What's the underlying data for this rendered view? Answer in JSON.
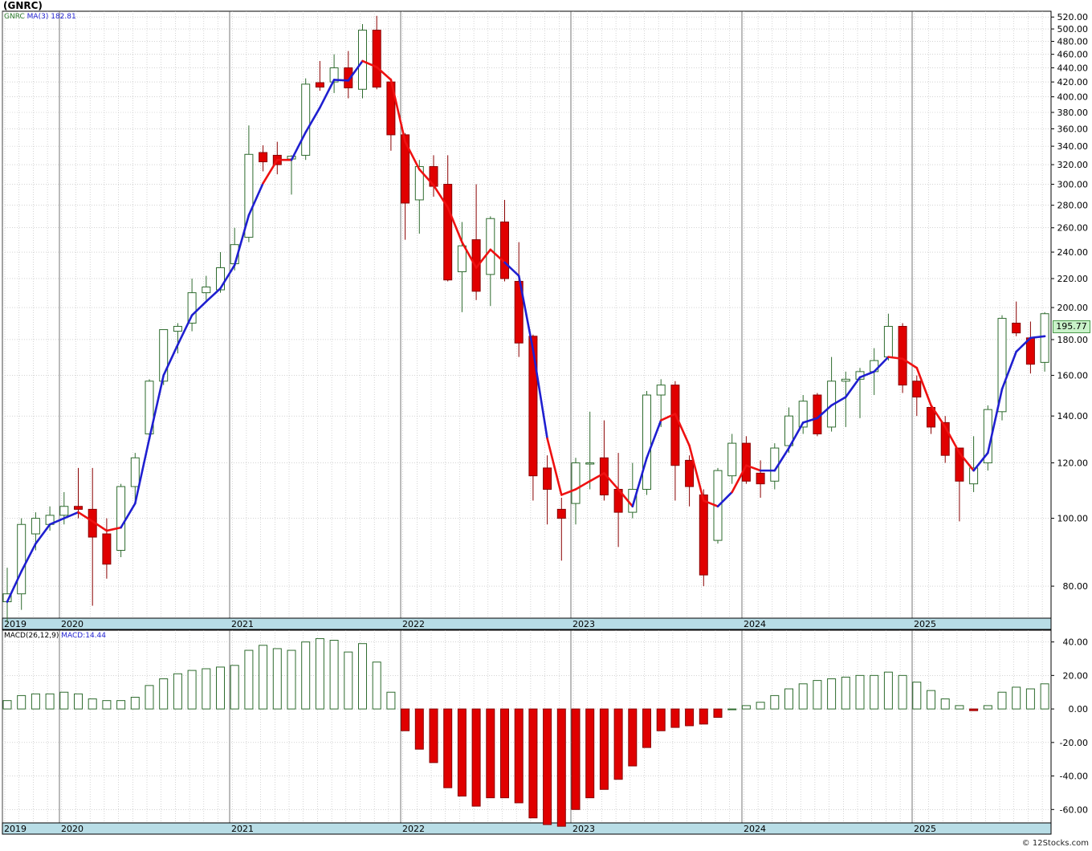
{
  "header": {
    "title": "(GNRC)"
  },
  "legend": {
    "symbol": "GNRC",
    "ma_label": "MA(3)",
    "ma_value": "182.81"
  },
  "macd_legend": {
    "label": "MACD(26,12,9)",
    "value": "MACD:14.44"
  },
  "last_price_tag": "195.77",
  "footer": {
    "credit": "© 12Stocks.com"
  },
  "colors": {
    "up": "#2e6b2e",
    "down": "#e00000",
    "ma_up": "#1f1fd0",
    "ma_down": "#ee1111",
    "axis_band": "#b8dde6"
  },
  "chart_data": [
    {
      "type": "candlestick",
      "title": "(GNRC)",
      "scale": "log",
      "ylim": [
        72,
        530
      ],
      "y_ticks": [
        80,
        100,
        120,
        140,
        160,
        180,
        200,
        220,
        240,
        260,
        280,
        300,
        320,
        340,
        360,
        380,
        400,
        420,
        440,
        460,
        480,
        500,
        520
      ],
      "x_year_labels": [
        "2019",
        "2020",
        "2021",
        "2022",
        "2023",
        "2024",
        "2025"
      ],
      "grid": true,
      "ohlc": [
        [
          76,
          85,
          71,
          78
        ],
        [
          78,
          100,
          74,
          98
        ],
        [
          95,
          102,
          90,
          100
        ],
        [
          98,
          104,
          96,
          101
        ],
        [
          101,
          109,
          98,
          104
        ],
        [
          104,
          118,
          100,
          103
        ],
        [
          103,
          118,
          75,
          94
        ],
        [
          95,
          100,
          82,
          86
        ],
        [
          90,
          112,
          88,
          111
        ],
        [
          111,
          124,
          106,
          122
        ],
        [
          132,
          158,
          130,
          157
        ],
        [
          157,
          182,
          155,
          186
        ],
        [
          185,
          190,
          172,
          188
        ],
        [
          190,
          220,
          185,
          210
        ],
        [
          210,
          222,
          205,
          214
        ],
        [
          212,
          240,
          210,
          228
        ],
        [
          231,
          260,
          226,
          246
        ],
        [
          252,
          364,
          248,
          331
        ],
        [
          333,
          341,
          313,
          323
        ],
        [
          330,
          345,
          310,
          320
        ],
        [
          326,
          330,
          290,
          329
        ],
        [
          330,
          425,
          325,
          417
        ],
        [
          419,
          450,
          408,
          413
        ],
        [
          420,
          460,
          405,
          440
        ],
        [
          440,
          465,
          398,
          412
        ],
        [
          410,
          508,
          398,
          498
        ],
        [
          498,
          522,
          410,
          413
        ],
        [
          420,
          425,
          335,
          353
        ],
        [
          353,
          355,
          250,
          282
        ],
        [
          285,
          325,
          255,
          318
        ],
        [
          318,
          330,
          288,
          298
        ],
        [
          300,
          330,
          218,
          219
        ],
        [
          225,
          265,
          197,
          245
        ],
        [
          250,
          300,
          205,
          211
        ],
        [
          223,
          270,
          201,
          268
        ],
        [
          265,
          285,
          218,
          220
        ],
        [
          218,
          248,
          170,
          178
        ],
        [
          182,
          183,
          106,
          115
        ],
        [
          118,
          123,
          98,
          110
        ],
        [
          103,
          107,
          87,
          100
        ],
        [
          105,
          122,
          98,
          120
        ],
        [
          120,
          142,
          110,
          120
        ],
        [
          122,
          138,
          106,
          108
        ],
        [
          110,
          124,
          91,
          102
        ],
        [
          102,
          120,
          100,
          110
        ],
        [
          110,
          152,
          108,
          150
        ],
        [
          150,
          158,
          135,
          155
        ],
        [
          155,
          157,
          106,
          119
        ],
        [
          121,
          123,
          104,
          111
        ],
        [
          108,
          110,
          80,
          83
        ],
        [
          93,
          118,
          92,
          117
        ],
        [
          115,
          132,
          112,
          128
        ],
        [
          128,
          131,
          112,
          113
        ],
        [
          116,
          121,
          107,
          112
        ],
        [
          113,
          128,
          110,
          126
        ],
        [
          127,
          144,
          124,
          140
        ],
        [
          135,
          150,
          132,
          147
        ],
        [
          150,
          151,
          131,
          132
        ],
        [
          135,
          170,
          133,
          157
        ],
        [
          157,
          162,
          135,
          158
        ],
        [
          158,
          164,
          139,
          162
        ],
        [
          162,
          175,
          150,
          168
        ],
        [
          170,
          196,
          168,
          188
        ],
        [
          188,
          190,
          151,
          155
        ],
        [
          157,
          160,
          140,
          149
        ],
        [
          144,
          145,
          132,
          135
        ],
        [
          137,
          140,
          120,
          123
        ],
        [
          126,
          126,
          99,
          113
        ],
        [
          112,
          131,
          109,
          118
        ],
        [
          120,
          145,
          117,
          143
        ],
        [
          142,
          195,
          138,
          193
        ],
        [
          190,
          204,
          182,
          184
        ],
        [
          181,
          191,
          161,
          166
        ],
        [
          167,
          197,
          162,
          196
        ]
      ],
      "ma3_up": [
        76,
        84,
        92,
        98,
        100,
        102,
        99,
        96,
        97,
        105,
        130,
        160,
        177,
        195,
        204,
        213,
        230,
        271,
        301,
        325,
        325,
        356,
        386,
        423,
        422,
        450,
        441,
        423,
        345,
        315,
        299,
        278,
        248,
        228,
        242,
        232,
        222,
        174,
        130,
        108,
        110,
        113,
        116,
        110,
        104,
        122,
        138,
        141,
        127,
        106,
        104,
        109,
        119,
        117,
        117,
        126,
        137,
        139,
        145,
        149,
        159,
        162,
        170,
        169,
        164,
        145,
        135,
        124,
        117,
        124,
        153,
        173,
        181,
        182
      ],
      "ma3_down_segments": [
        [
          5,
          8
        ],
        [
          18,
          20
        ],
        [
          25,
          35
        ],
        [
          38,
          44
        ],
        [
          46,
          50
        ],
        [
          51,
          53
        ],
        [
          62,
          68
        ]
      ]
    },
    {
      "type": "bar",
      "title": "MACD(26,12,9)",
      "ylim": [
        -68,
        47
      ],
      "y_ticks": [
        -60,
        -40,
        -20,
        0,
        20,
        40
      ],
      "x_year_labels": [
        "2019",
        "2020",
        "2021",
        "2022",
        "2023",
        "2024",
        "2025"
      ],
      "values": [
        5,
        8,
        9,
        9,
        10,
        9,
        6,
        5,
        5,
        7,
        14,
        18,
        21,
        23,
        24,
        25,
        26,
        35,
        38,
        36,
        35,
        40,
        42,
        41,
        34,
        39,
        28,
        10,
        -13,
        -24,
        -32,
        -47,
        -52,
        -58,
        -53,
        -53,
        -56,
        -65,
        -69,
        -70,
        -60,
        -53,
        -48,
        -42,
        -34,
        -23,
        -13,
        -11,
        -10,
        -9,
        -5,
        0,
        2,
        4,
        8,
        12,
        15,
        17,
        18,
        19,
        20,
        20,
        22,
        20,
        16,
        11,
        6,
        2,
        -1,
        2,
        10,
        13,
        12,
        15
      ]
    }
  ]
}
